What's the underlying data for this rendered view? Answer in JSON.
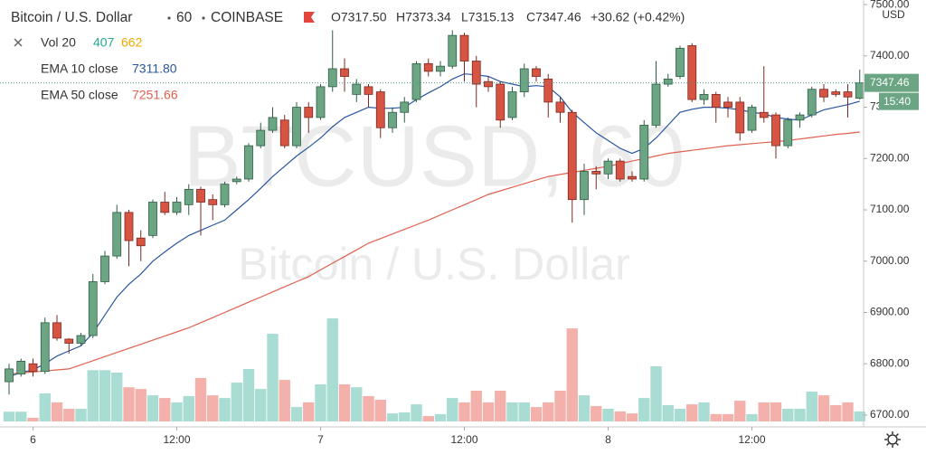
{
  "chart_data": {
    "type": "candlestick",
    "title": "Bitcoin / U.S. Dollar",
    "interval": "60",
    "exchange": "COINBASE",
    "ohlc_labels": [
      "O7317.50",
      "H7373.34",
      "L7315.13",
      "C7347.46"
    ],
    "change_label": "+30.62 (+0.42%)",
    "watermark": "BTCUSD, 60",
    "currency": "USD",
    "countdown": "15:40",
    "volume_legend": {
      "name": "Vol 20",
      "value": "407",
      "ma": "662",
      "colors": [
        "#22ab94",
        "#f7a600"
      ]
    },
    "categories": [
      null,
      null,
      "6",
      null,
      null,
      null,
      null,
      null,
      null,
      null,
      null,
      null,
      null,
      null,
      "12:00",
      null,
      null,
      null,
      null,
      null,
      null,
      null,
      null,
      null,
      null,
      null,
      "7",
      null,
      null,
      null,
      null,
      null,
      null,
      null,
      null,
      null,
      null,
      null,
      "12:00",
      null,
      null,
      null,
      null,
      null,
      null,
      null,
      null,
      null,
      null,
      null,
      "8",
      null,
      null,
      null,
      null,
      null,
      null,
      null,
      null,
      null,
      null,
      null,
      "12:00",
      null,
      null,
      null,
      null,
      null,
      null,
      null,
      null,
      null
    ],
    "open": [
      6765,
      6780,
      6800,
      6785,
      6880,
      6848,
      6840,
      6855,
      6960,
      7010,
      7095,
      7045,
      7050,
      7115,
      7095,
      7110,
      7140,
      7120,
      7110,
      7155,
      7160,
      7225,
      7255,
      7275,
      7225,
      7300,
      7280,
      7340,
      7375,
      7325,
      7340,
      7330,
      7260,
      7290,
      7315,
      7385,
      7370,
      7380,
      7440,
      7390,
      7350,
      7345,
      7280,
      7330,
      7375,
      7355,
      7310,
      7290,
      7120,
      7175,
      7170,
      7195,
      7165,
      7160,
      7265,
      7345,
      7360,
      7420,
      7315,
      7325,
      7310,
      7310,
      7255,
      7290,
      7285,
      7225,
      7275,
      7285,
      7335,
      7330,
      7330,
      7317.5
    ],
    "high": [
      6800,
      6810,
      6810,
      6890,
      6895,
      6850,
      6860,
      6975,
      7020,
      7110,
      7100,
      7060,
      7120,
      7135,
      7125,
      7150,
      7145,
      7130,
      7155,
      7165,
      7230,
      7270,
      7300,
      7285,
      7310,
      7310,
      7345,
      7450,
      7395,
      7355,
      7345,
      7335,
      7300,
      7320,
      7390,
      7395,
      7390,
      7450,
      7445,
      7400,
      7360,
      7350,
      7340,
      7385,
      7380,
      7365,
      7320,
      7295,
      7190,
      7185,
      7200,
      7200,
      7175,
      7275,
      7390,
      7365,
      7420,
      7425,
      7335,
      7330,
      7320,
      7320,
      7305,
      7380,
      7290,
      7280,
      7290,
      7340,
      7345,
      7335,
      7345,
      7373.34
    ],
    "low": [
      6740,
      6775,
      6775,
      6780,
      6845,
      6820,
      6835,
      6850,
      6955,
      7005,
      6990,
      7000,
      7045,
      7090,
      7090,
      7090,
      7050,
      7080,
      7105,
      7150,
      7155,
      7220,
      7250,
      7220,
      7220,
      7250,
      7275,
      7330,
      7330,
      7310,
      7300,
      7240,
      7250,
      7270,
      7310,
      7360,
      7360,
      7375,
      7350,
      7300,
      7330,
      7260,
      7275,
      7320,
      7350,
      7280,
      7270,
      7075,
      7090,
      7140,
      7160,
      7155,
      7155,
      7155,
      7260,
      7340,
      7355,
      7310,
      7305,
      7270,
      7280,
      7235,
      7250,
      7270,
      7200,
      7220,
      7260,
      7280,
      7310,
      7320,
      7280,
      7315.13
    ],
    "close": [
      6790,
      6805,
      6785,
      6880,
      6850,
      6840,
      6855,
      6960,
      7010,
      7095,
      7040,
      7030,
      7115,
      7095,
      7115,
      7140,
      7115,
      7110,
      7150,
      7160,
      7225,
      7255,
      7280,
      7225,
      7300,
      7280,
      7340,
      7375,
      7360,
      7345,
      7325,
      7260,
      7290,
      7310,
      7385,
      7370,
      7380,
      7440,
      7390,
      7345,
      7340,
      7275,
      7330,
      7375,
      7360,
      7310,
      7290,
      7120,
      7175,
      7170,
      7195,
      7160,
      7160,
      7265,
      7345,
      7355,
      7415,
      7315,
      7325,
      7300,
      7300,
      7250,
      7300,
      7280,
      7225,
      7275,
      7285,
      7335,
      7320,
      7325,
      7320,
      7347.46
    ],
    "volume": [
      400,
      400,
      150,
      1150,
      780,
      520,
      520,
      2100,
      2100,
      2000,
      1400,
      1330,
      1070,
      960,
      780,
      1040,
      1780,
      1070,
      960,
      1590,
      2150,
      1330,
      3590,
      1700,
      590,
      780,
      1520,
      4220,
      1520,
      1400,
      1040,
      890,
      330,
      370,
      700,
      220,
      300,
      960,
      780,
      1260,
      780,
      1260,
      780,
      780,
      590,
      780,
      1260,
      3810,
      1070,
      630,
      520,
      410,
      330,
      960,
      2260,
      670,
      520,
      700,
      780,
      300,
      300,
      850,
      300,
      780,
      780,
      520,
      520,
      1220,
      1070,
      670,
      780,
      407
    ],
    "up_color": "#6ba583",
    "down_color": "#d75442",
    "volume_up_color": "#a9ddd4",
    "volume_down_color": "#f4b1ab",
    "series": [
      {
        "name": "EMA 10 close",
        "last_label": "7311.80",
        "color": "#2756a0",
        "values": [
          6775,
          6783,
          6788,
          6800,
          6815,
          6825,
          6835,
          6860,
          6895,
          6930,
          6955,
          6975,
          7000,
          7018,
          7035,
          7050,
          7060,
          7070,
          7080,
          7100,
          7120,
          7142,
          7165,
          7185,
          7205,
          7222,
          7240,
          7262,
          7280,
          7290,
          7300,
          7298,
          7298,
          7300,
          7315,
          7328,
          7340,
          7355,
          7365,
          7363,
          7360,
          7350,
          7345,
          7340,
          7342,
          7340,
          7320,
          7290,
          7270,
          7250,
          7235,
          7220,
          7210,
          7220,
          7240,
          7265,
          7290,
          7296,
          7300,
          7300,
          7298,
          7295,
          7290,
          7287,
          7280,
          7277,
          7275,
          7285,
          7295,
          7300,
          7305,
          7311.8
        ]
      },
      {
        "name": "EMA 50 close",
        "last_label": "7251.66",
        "color": "#e0604f",
        "values": [
          6780,
          6782,
          6784,
          6786,
          6788,
          6790,
          6798,
          6806,
          6814,
          6822,
          6830,
          6838,
          6846,
          6854,
          6862,
          6870,
          6880,
          6890,
          6900,
          6910,
          6920,
          6930,
          6940,
          6950,
          6960,
          6970,
          6983,
          6996,
          7009,
          7022,
          7035,
          7044,
          7053,
          7062,
          7071,
          7080,
          7090,
          7100,
          7110,
          7120,
          7130,
          7137,
          7144,
          7151,
          7158,
          7165,
          7169,
          7173,
          7177,
          7181,
          7185,
          7190,
          7195,
          7200,
          7205,
          7210,
          7213,
          7216,
          7219,
          7222,
          7225,
          7227,
          7229,
          7231,
          7233,
          7235,
          7238,
          7241,
          7244,
          7247,
          7249,
          7251.66
        ]
      }
    ],
    "ylim": [
      6677,
      7509
    ],
    "yticks": [
      {
        "value": 6700,
        "label": "6700.00"
      },
      {
        "value": 6800,
        "label": "6800.00"
      },
      {
        "value": 6900,
        "label": "6900.00"
      },
      {
        "value": 7000,
        "label": "7000.00"
      },
      {
        "value": 7100,
        "label": "7100.00"
      },
      {
        "value": 7200,
        "label": "7200.00"
      },
      {
        "value": 7300,
        "label": "7300.00"
      },
      {
        "value": 7400,
        "label": "7400.00"
      },
      {
        "value": 7500,
        "label": "7500.00"
      }
    ],
    "grid": false
  }
}
